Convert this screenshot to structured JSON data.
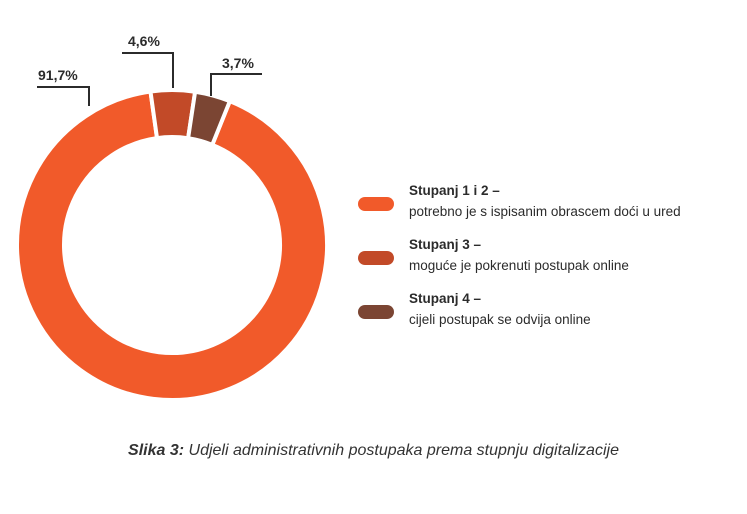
{
  "chart_data": {
    "type": "pie",
    "donut": true,
    "values": [
      91.7,
      4.6,
      3.7
    ],
    "data_labels": [
      "91,7%",
      "4,6%",
      "3,7%"
    ],
    "colors": [
      "#F15A2A",
      "#C24A28",
      "#7B4533"
    ],
    "legend_position": "right",
    "legend": [
      {
        "title": "Stupanj 1 i 2 –",
        "description": "potrebno je s ispisanim obrascem doći u ured"
      },
      {
        "title": "Stupanj 3 –",
        "description": "moguće je pokrenuti postupak online"
      },
      {
        "title": "Stupanj 4 –",
        "description": "cijeli postupak se odvija online"
      }
    ]
  },
  "caption": {
    "label": "Slika 3:",
    "text": "Udjeli administrativnih postupaka prema stupnju digitalizacije"
  }
}
